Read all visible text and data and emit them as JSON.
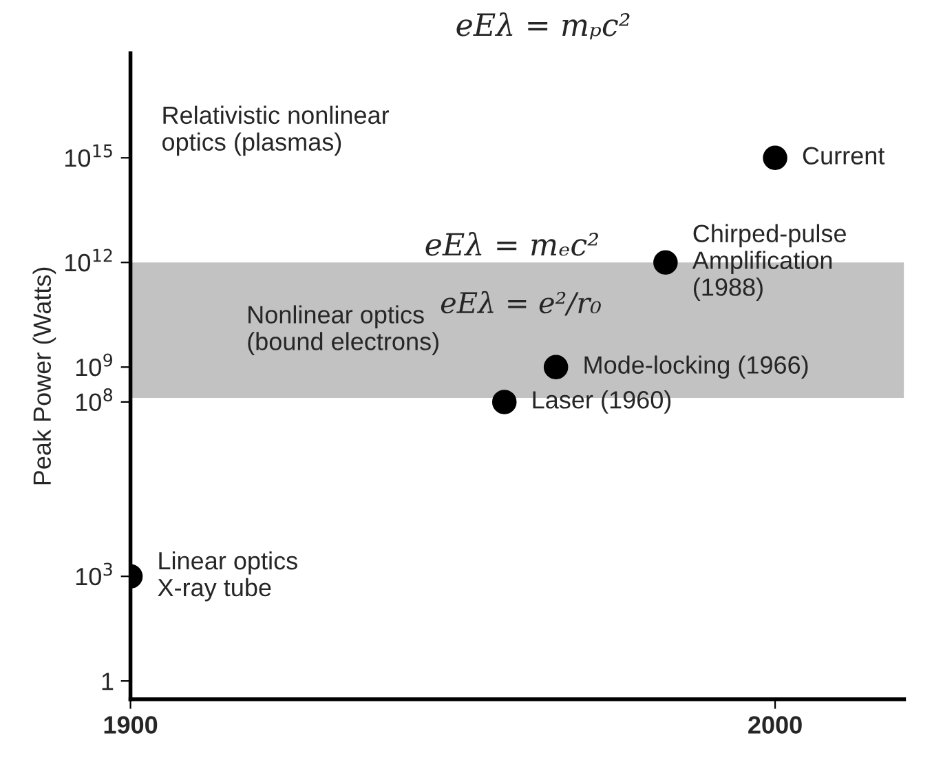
{
  "chart_data": {
    "type": "scatter",
    "ylabel": "Peak Power (Watts)",
    "log": "y",
    "x": [
      1900,
      1958,
      1966,
      1983,
      2000
    ],
    "series": [
      {
        "color": "#000000",
        "values": [
          1000,
          100000000,
          1000000000,
          1000000000000,
          1000000000000000
        ]
      }
    ],
    "marker": "circle",
    "xlim": [
      1900,
      2020
    ],
    "xticks": [
      1900,
      2000
    ],
    "ylim": [
      0.3,
      1e+18
    ],
    "yticks": [
      1,
      {
        "value": 1000,
        "label": "10$^{3}$"
      },
      {
        "value": 100000000,
        "label": "10$^{8}$"
      },
      {
        "value": 1000000000,
        "label": "10$^{9}$"
      },
      {
        "value": 1000000000000,
        "label": "10$^{12}$"
      },
      {
        "value": 1000000000000000,
        "label": "10$^{15}$"
      }
    ],
    "bands": [
      {
        "axis": "y",
        "from": 130000000,
        "to": 1000000000000,
        "label": "Nonlinear optics\n(bound electrons)",
        "color": "#9a9a9a"
      }
    ],
    "annotations": [
      {
        "text": "Linear optics\nX-ray tube",
        "x": 1900,
        "y": 1000
      },
      {
        "text": "Laser (1960)",
        "x": 1958,
        "y": 100000000
      },
      {
        "text": "Mode-locking (1966)",
        "x": 1966,
        "y": 1000000000
      },
      {
        "text": "Chirped-pulse\nAmplification\n(1988)",
        "x": 1983,
        "y": 1000000000000
      },
      {
        "text": "Current",
        "x": 2000,
        "y": 1000000000000000
      },
      "Relativistic nonlinear\noptics (plasmas)",
      "eEλ = mₚc²",
      "eEλ = mₑc²",
      "eEλ = e²/r₀"
    ],
    "grid": false
  }
}
